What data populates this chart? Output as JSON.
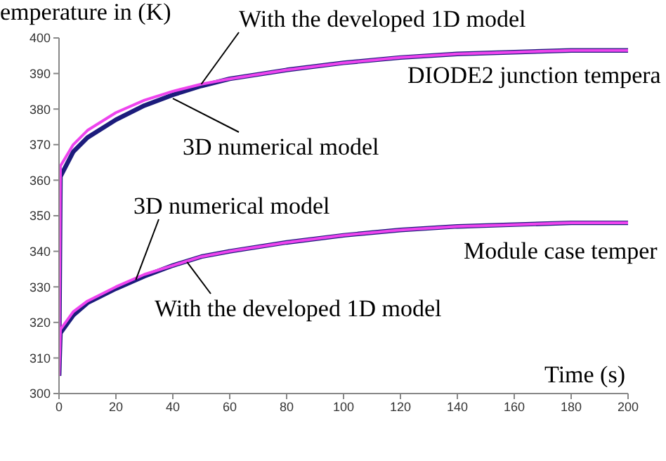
{
  "chart_data": {
    "type": "line",
    "xlabel": "Time (s)",
    "ylabel": "emperature in (K)",
    "xlim": [
      0,
      200
    ],
    "ylim": [
      300,
      400
    ],
    "xticks": [
      0,
      20,
      40,
      60,
      80,
      100,
      120,
      140,
      160,
      180,
      200
    ],
    "yticks": [
      300,
      310,
      320,
      330,
      340,
      350,
      360,
      370,
      380,
      390,
      400
    ],
    "marker": "none",
    "line_style": "solid",
    "x": [
      0,
      0.5,
      5,
      10,
      20,
      30,
      40,
      50,
      60,
      80,
      100,
      120,
      140,
      160,
      180,
      200
    ],
    "series": [
      {
        "color": "#1c1c7c",
        "values": [
          305,
          361,
          368,
          372,
          377,
          381,
          384,
          386.5,
          388.5,
          391,
          393,
          394.5,
          395.5,
          396,
          396.5,
          396.5
        ]
      },
      {
        "color": "#ee44ee",
        "values": [
          305,
          364,
          370,
          374,
          379,
          382.5,
          385,
          387,
          388.5,
          391,
          393,
          394.5,
          395.5,
          396,
          396.5,
          396.5
        ]
      },
      {
        "color": "#1c1c7c",
        "values": [
          305,
          317,
          322,
          325.5,
          329.5,
          333,
          336,
          338.5,
          340,
          342.5,
          344.5,
          346,
          347,
          347.5,
          348,
          348
        ]
      },
      {
        "color": "#ee44ee",
        "values": [
          305,
          318,
          323,
          326,
          330,
          333.5,
          336,
          338.5,
          340,
          342.5,
          344.5,
          346,
          347,
          347.5,
          348,
          348
        ]
      }
    ],
    "annotations": [
      {
        "text": "With the developed 1D model",
        "x": 50,
        "y": 387
      },
      {
        "text": "3D numerical model",
        "x": 40,
        "y": 383
      },
      "DIODE2 junction tempera",
      {
        "text": "3D numerical model",
        "x": 27,
        "y": 332
      },
      "Module case temper",
      {
        "text": "With the developed 1D model",
        "x": 45,
        "y": 337
      }
    ]
  }
}
